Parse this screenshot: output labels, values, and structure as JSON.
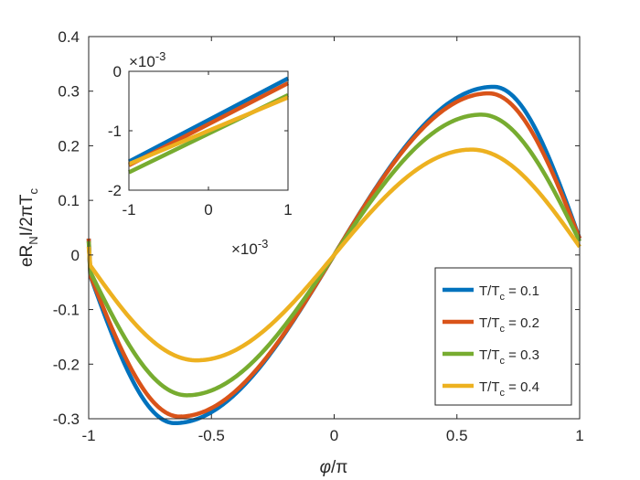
{
  "chart_data": {
    "main": {
      "type": "line",
      "xlabel_symbol": "φ",
      "xlabel_rest": "/π",
      "ylabel_parts": [
        "eR",
        "N",
        "I/2πT",
        "c"
      ],
      "xlim": [
        -1,
        1
      ],
      "ylim": [
        -0.3,
        0.4
      ],
      "xticks": [
        -1,
        -0.5,
        0,
        0.5,
        1
      ],
      "xtick_labels": [
        "-1",
        "-0.5",
        "0",
        "0.5",
        "1"
      ],
      "yticks": [
        -0.3,
        -0.2,
        -0.1,
        0,
        0.1,
        0.2,
        0.3,
        0.4
      ],
      "ytick_labels": [
        "-0.3",
        "-0.2",
        "-0.1",
        "0",
        "0.1",
        "0.2",
        "0.3",
        "0.4"
      ],
      "grid": false,
      "legend_position": "bottom-right",
      "series": [
        {
          "name": "T/Tc = 0.1",
          "label_pre": "T/T",
          "label_sub": "c",
          "label_post": " = 0.1",
          "color": "#0072BD",
          "peak_x": 0.65,
          "amplitude": 0.308,
          "x": [
            -1,
            -0.95,
            -0.9,
            -0.8,
            -0.7,
            -0.65,
            -0.6,
            -0.5,
            -0.4,
            -0.3,
            -0.2,
            -0.1,
            0,
            0.1,
            0.2,
            0.3,
            0.4,
            0.5,
            0.6,
            0.65,
            0.7,
            0.8,
            0.9,
            0.95,
            1
          ],
          "values": [
            0.03,
            -0.09,
            -0.17,
            -0.262,
            -0.3,
            -0.308,
            -0.304,
            -0.271,
            -0.221,
            -0.166,
            -0.11,
            -0.055,
            0,
            0.055,
            0.11,
            0.166,
            0.221,
            0.271,
            0.304,
            0.308,
            0.3,
            0.262,
            0.17,
            0.09,
            0.03
          ]
        },
        {
          "name": "T/Tc = 0.2",
          "label_pre": "T/T",
          "label_sub": "c",
          "label_post": " = 0.2",
          "color": "#D95319",
          "peak_x": 0.63,
          "amplitude": 0.296,
          "x": [
            -1,
            -0.95,
            -0.9,
            -0.8,
            -0.7,
            -0.63,
            -0.6,
            -0.5,
            -0.4,
            -0.3,
            -0.2,
            -0.1,
            0,
            0.1,
            0.2,
            0.3,
            0.4,
            0.5,
            0.6,
            0.63,
            0.7,
            0.8,
            0.9,
            0.95,
            1
          ],
          "values": [
            0.03,
            -0.08,
            -0.158,
            -0.25,
            -0.29,
            -0.296,
            -0.294,
            -0.265,
            -0.218,
            -0.164,
            -0.109,
            -0.055,
            0,
            0.055,
            0.109,
            0.164,
            0.218,
            0.265,
            0.294,
            0.296,
            0.29,
            0.25,
            0.158,
            0.08,
            0.03
          ]
        },
        {
          "name": "T/Tc = 0.3",
          "label_pre": "T/T",
          "label_sub": "c",
          "label_post": " = 0.3",
          "color": "#77AC30",
          "peak_x": 0.6,
          "amplitude": 0.257,
          "x": [
            -1,
            -0.95,
            -0.9,
            -0.8,
            -0.7,
            -0.6,
            -0.5,
            -0.4,
            -0.3,
            -0.2,
            -0.1,
            0,
            0.1,
            0.2,
            0.3,
            0.4,
            0.5,
            0.6,
            0.7,
            0.8,
            0.9,
            0.95,
            1
          ],
          "values": [
            0.025,
            -0.06,
            -0.125,
            -0.207,
            -0.247,
            -0.257,
            -0.245,
            -0.21,
            -0.16,
            -0.108,
            -0.054,
            0,
            0.054,
            0.108,
            0.16,
            0.21,
            0.245,
            0.257,
            0.247,
            0.207,
            0.125,
            0.06,
            0.025
          ]
        },
        {
          "name": "T/Tc = 0.4",
          "label_pre": "T/T",
          "label_sub": "c",
          "label_post": " = 0.4",
          "color": "#EDB120",
          "peak_x": 0.56,
          "amplitude": 0.193,
          "x": [
            -1,
            -0.95,
            -0.9,
            -0.8,
            -0.7,
            -0.56,
            -0.5,
            -0.4,
            -0.3,
            -0.2,
            -0.1,
            0,
            0.1,
            0.2,
            0.3,
            0.4,
            0.5,
            0.56,
            0.7,
            0.8,
            0.9,
            0.95,
            1
          ],
          "values": [
            0.015,
            -0.03,
            -0.075,
            -0.14,
            -0.178,
            -0.193,
            -0.19,
            -0.172,
            -0.137,
            -0.095,
            -0.048,
            0,
            0.048,
            0.095,
            0.137,
            0.172,
            0.19,
            0.193,
            0.178,
            0.14,
            0.075,
            0.03,
            0.015
          ]
        }
      ]
    },
    "inset": {
      "type": "line",
      "x_exponent_base": "×10",
      "x_exponent_power": "-3",
      "y_exponent_base": "×10",
      "y_exponent_power": "-3",
      "xlim": [
        -1,
        1
      ],
      "ylim": [
        -2,
        0
      ],
      "xticks": [
        -1,
        0,
        1
      ],
      "xtick_labels": [
        "-1",
        "0",
        "1"
      ],
      "yticks": [
        -2,
        -1,
        0
      ],
      "ytick_labels": [
        "-2",
        "-1",
        "0"
      ],
      "series": [
        {
          "name": "T/Tc = 0.1",
          "color": "#0072BD",
          "x": [
            -1,
            1
          ],
          "values": [
            -1.52,
            -0.12
          ]
        },
        {
          "name": "T/Tc = 0.2",
          "color": "#D95319",
          "x": [
            -1,
            1
          ],
          "values": [
            -1.58,
            -0.2
          ]
        },
        {
          "name": "T/Tc = 0.3",
          "color": "#77AC30",
          "x": [
            -1,
            1
          ],
          "values": [
            -1.7,
            -0.4
          ]
        },
        {
          "name": "T/Tc = 0.4",
          "color": "#EDB120",
          "x": [
            -1,
            1
          ],
          "values": [
            -1.56,
            -0.44
          ]
        }
      ]
    }
  }
}
